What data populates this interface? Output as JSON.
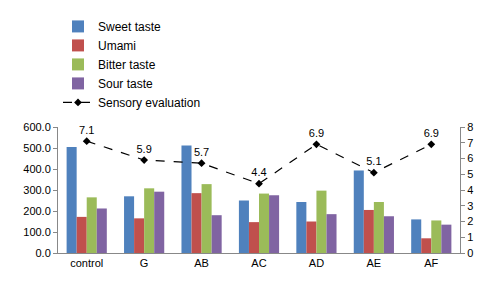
{
  "chart_data": {
    "type": "bar",
    "categories": [
      "control",
      "G",
      "AB",
      "AC",
      "AD",
      "AE",
      "AF"
    ],
    "series": [
      {
        "name": "Sweet taste",
        "color": "#4f81bd",
        "values": [
          505,
          270,
          512,
          250,
          243,
          393,
          160
        ]
      },
      {
        "name": "Umami",
        "color": "#c0504d",
        "values": [
          172,
          165,
          285,
          147,
          150,
          205,
          70
        ]
      },
      {
        "name": "Bitter taste",
        "color": "#9bbb59",
        "values": [
          265,
          308,
          328,
          283,
          297,
          243,
          155
        ]
      },
      {
        "name": "Sour taste",
        "color": "#8064a2",
        "values": [
          212,
          292,
          180,
          275,
          185,
          175,
          135
        ]
      },
      {
        "name": "Sensory evaluation",
        "type": "line",
        "axis": "y2",
        "color": "#000000",
        "marker": "diamond",
        "line_style": "dash",
        "data_labels": true,
        "values": [
          7.1,
          5.9,
          5.7,
          4.4,
          6.9,
          5.1,
          6.9
        ]
      }
    ],
    "ylim": [
      0,
      600
    ],
    "yticks": [
      {
        "value": 0,
        "label": "0.0"
      },
      {
        "value": 100,
        "label": "100.0"
      },
      {
        "value": 200,
        "label": "200.0"
      },
      {
        "value": 300,
        "label": "300.0"
      },
      {
        "value": 400,
        "label": "400.0"
      },
      {
        "value": 500,
        "label": "500.0"
      },
      {
        "value": 600,
        "label": "600.0"
      }
    ],
    "y2lim": [
      0,
      8
    ],
    "y2ticks": [
      0,
      1,
      2,
      3,
      4,
      5,
      6,
      7,
      8
    ],
    "grid": false,
    "legend": "top"
  }
}
